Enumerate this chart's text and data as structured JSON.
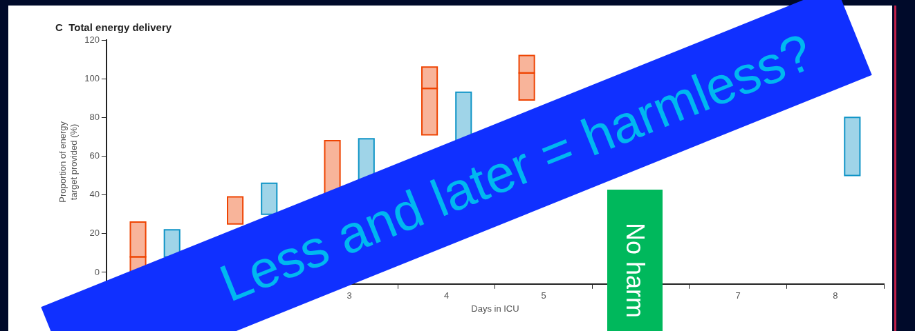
{
  "chart_data": {
    "type": "bar",
    "title": "C  Total energy delivery",
    "xlabel": "Days in ICU",
    "ylabel": "Proportion of energy\ntarget provided (%)",
    "categories": [
      null,
      null,
      "3",
      "4",
      "5",
      null,
      "7",
      "8"
    ],
    "series": [
      {
        "color": "#f8b49a",
        "base": [
          0,
          null,
          null,
          71,
          89,
          null,
          null,
          null
        ],
        "values": [
          8,
          null,
          null,
          24,
          14,
          null,
          null,
          null
        ]
      },
      {
        "color": "#f8b49a",
        "base": [
          8,
          25,
          40,
          95,
          103,
          null,
          null,
          null
        ],
        "values": [
          18,
          14,
          28,
          11,
          9,
          null,
          null,
          null
        ]
      },
      {
        "color": "#9fd4e8",
        "base": [
          null,
          null,
          null,
          null,
          null,
          null,
          null,
          50
        ],
        "values": [
          null,
          null,
          null,
          null,
          null,
          null,
          null,
          30
        ]
      },
      {
        "color": "#9fd4e8",
        "base": [
          8,
          30,
          48,
          68,
          null,
          null,
          null,
          null
        ],
        "values": [
          14,
          16,
          21,
          25,
          null,
          null,
          null,
          null
        ]
      }
    ],
    "ylim": [
      -6,
      120
    ],
    "yticks": [
      0,
      20,
      40,
      60,
      80,
      100,
      120
    ],
    "grid": false,
    "legend": false,
    "annotations": [
      "Less and later = harmless?",
      "No harm"
    ]
  }
}
